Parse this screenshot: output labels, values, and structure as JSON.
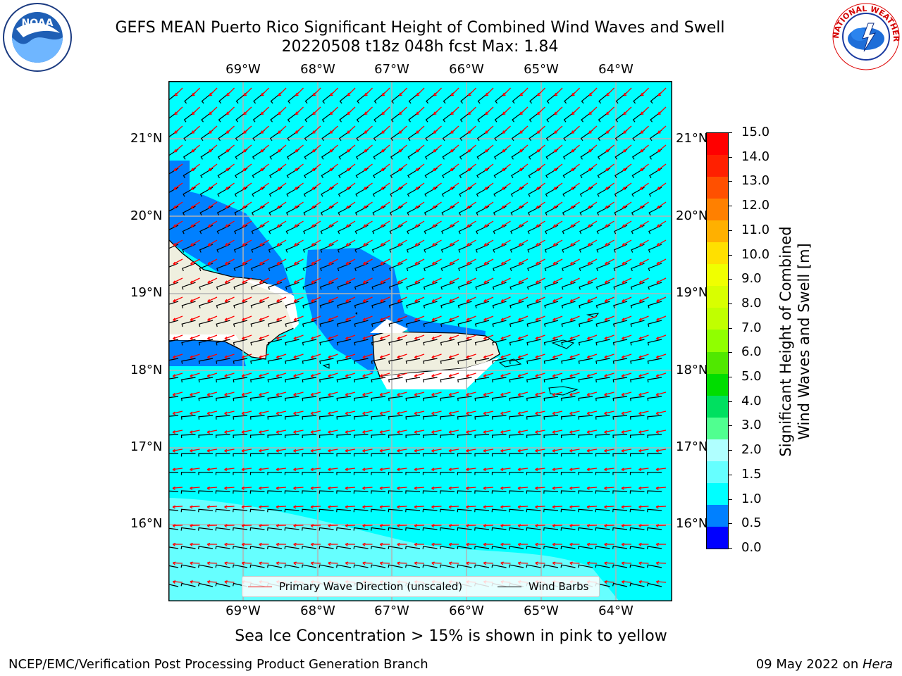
{
  "title": {
    "line1": "GEFS MEAN Puerto Rico Significant Height of Combined Wind Waves and Swell",
    "line2": "20220508 t18z 048h fcst   Max: 1.84"
  },
  "map": {
    "lon_labels": [
      "69°W",
      "68°W",
      "67°W",
      "66°W",
      "65°W",
      "64°W"
    ],
    "lat_labels": [
      "21°N",
      "20°N",
      "19°N",
      "18°N",
      "17°N",
      "16°N"
    ],
    "legend": {
      "primary_wave": "Primary Wave Direction (unscaled)",
      "wind_barbs": "Wind Barbs"
    },
    "colors": {
      "ocean": "#00ffff",
      "light": "#66ffff",
      "deep": "#0080ff",
      "land": "#efefdf",
      "arrow": "#ff0000",
      "barb": "#000000",
      "grid": "#b3b3b3"
    }
  },
  "colorbar": {
    "label": "Significant Height of Combined Wind Waves and Swell [m]",
    "label_line1": "Significant Height of Combined",
    "label_line2": "Wind Waves and Swell [m]",
    "ticks": [
      "15.0",
      "14.0",
      "13.0",
      "12.0",
      "11.0",
      "10.0",
      "9.0",
      "8.0",
      "7.0",
      "6.0",
      "5.0",
      "4.0",
      "3.0",
      "2.0",
      "1.5",
      "1.0",
      "0.5",
      "0.0"
    ],
    "colors": [
      "#ff0000",
      "#ff2000",
      "#ff5000",
      "#ff8000",
      "#ffb000",
      "#ffe000",
      "#f0ff00",
      "#d8ff00",
      "#c0ff00",
      "#90ff00",
      "#50e800",
      "#00dd00",
      "#00e060",
      "#50ff90",
      "#b0ffff",
      "#66ffff",
      "#00ffff",
      "#0080ff",
      "#0000ff"
    ]
  },
  "caption": "Sea Ice Concentration > 15% is shown in pink to yellow",
  "footer": {
    "left": "NCEP/EMC/Verification Post Processing Product Generation Branch",
    "right_date": "09 May 2022 on ",
    "right_host": "Hera"
  },
  "logos": {
    "noaa_text": "NOAA",
    "nws_text": "NATIONAL WEATHER SERVICE"
  }
}
